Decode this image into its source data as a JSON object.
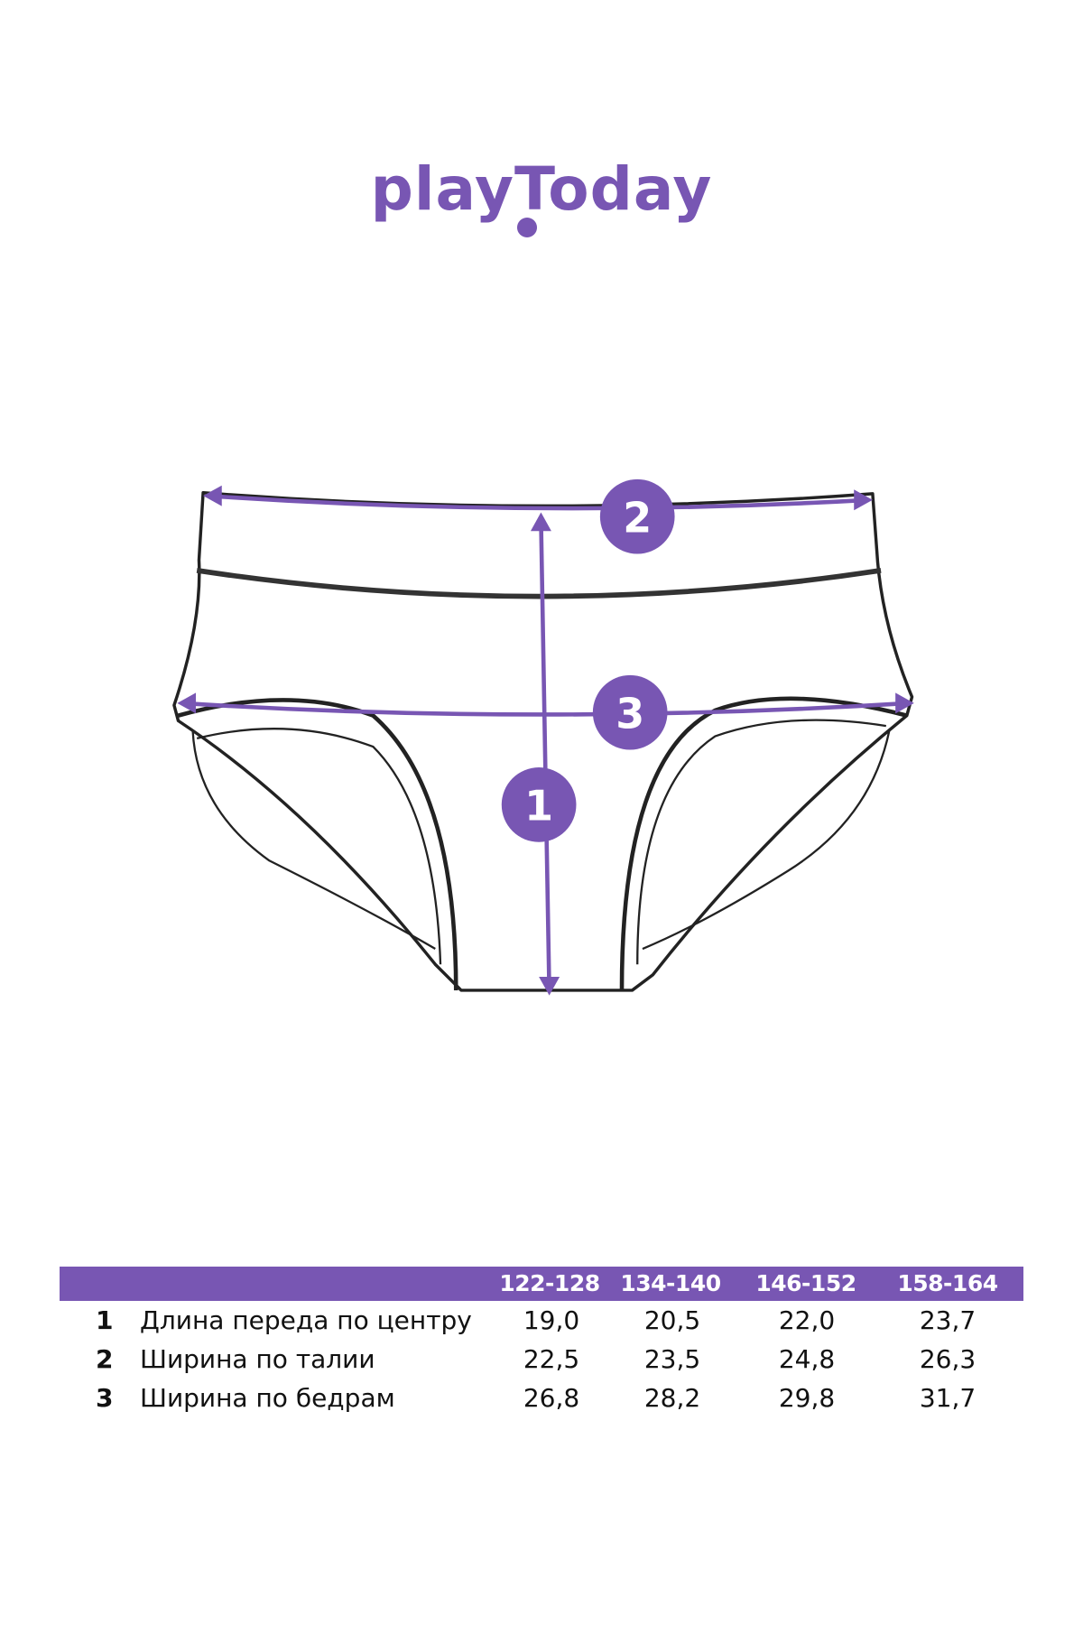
{
  "brand": {
    "logo_text": "playToday",
    "color": "#7856b3"
  },
  "diagram": {
    "markers": [
      "1",
      "2",
      "3"
    ]
  },
  "size_table": {
    "headers": [
      "122-128",
      "134-140",
      "146-152",
      "158-164"
    ],
    "rows": [
      {
        "num": "1",
        "label": "Длина переда по центру",
        "values": [
          "19,0",
          "20,5",
          "22,0",
          "23,7"
        ]
      },
      {
        "num": "2",
        "label": "Ширина по талии",
        "values": [
          "22,5",
          "23,5",
          "24,8",
          "26,3"
        ]
      },
      {
        "num": "3",
        "label": "Ширина по бедрам",
        "values": [
          "26,8",
          "28,2",
          "29,8",
          "31,7"
        ]
      }
    ]
  }
}
